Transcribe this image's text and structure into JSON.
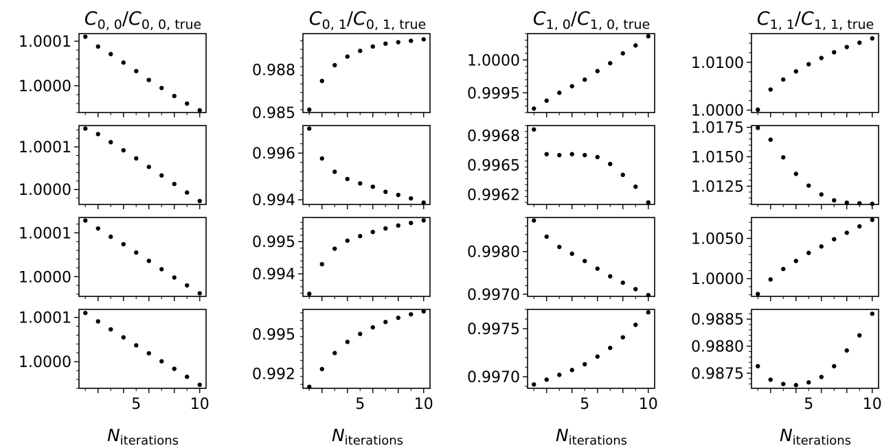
{
  "figure": {
    "column_titles": [
      {
        "base": "C",
        "sub": "0, 0",
        "den": "C",
        "den_sub": "0, 0, true"
      },
      {
        "base": "C",
        "sub": "0, 1",
        "den": "C",
        "den_sub": "0, 1, true"
      },
      {
        "base": "C",
        "sub": "1, 0",
        "den": "C",
        "den_sub": "1, 0, true"
      },
      {
        "base": "C",
        "sub": "1, 1",
        "den": "C",
        "den_sub": "1, 1, true"
      }
    ],
    "xlabel": {
      "base": "N",
      "sub": "iterations"
    },
    "x_ticks": [
      "5",
      "10"
    ],
    "point_color": "#000000"
  },
  "chart_data": [
    {
      "type": "scatter",
      "row": 0,
      "col": 0,
      "x": [
        1,
        2,
        3,
        4,
        5,
        6,
        7,
        8,
        9,
        10
      ],
      "y": [
        1.00011,
        1.000088,
        1.000071,
        1.000052,
        1.000033,
        1.000013,
        0.999995,
        0.999977,
        0.99996,
        0.999945
      ],
      "ylim": [
        0.99994,
        1.000117
      ],
      "yticks": [
        1.0,
        1.0001
      ],
      "ytick_labels": [
        "1.0000",
        "1.0001"
      ]
    },
    {
      "type": "scatter",
      "row": 0,
      "col": 1,
      "x": [
        1,
        2,
        3,
        4,
        5,
        6,
        7,
        8,
        9,
        10
      ],
      "y": [
        0.9852,
        0.9872,
        0.9883,
        0.9889,
        0.9893,
        0.9896,
        0.9898,
        0.9899,
        0.99,
        0.9901
      ],
      "ylim": [
        0.985,
        0.9905
      ],
      "yticks": [
        0.985,
        0.988
      ],
      "ytick_labels": [
        "0.985",
        "0.988"
      ]
    },
    {
      "type": "scatter",
      "row": 0,
      "col": 2,
      "x": [
        1,
        2,
        3,
        4,
        5,
        6,
        7,
        8,
        9,
        10
      ],
      "y": [
        0.99926,
        0.99938,
        0.9995,
        0.9996,
        0.9997,
        0.99983,
        0.99995,
        1.0001,
        1.00022,
        1.00036
      ],
      "ylim": [
        0.9992,
        1.0004
      ],
      "yticks": [
        0.9995,
        1.0
      ],
      "ytick_labels": [
        "0.9995",
        "1.0000"
      ]
    },
    {
      "type": "scatter",
      "row": 0,
      "col": 3,
      "x": [
        1,
        2,
        3,
        4,
        5,
        6,
        7,
        8,
        9,
        10
      ],
      "y": [
        1.0001,
        1.0043,
        1.0064,
        1.0081,
        1.0096,
        1.0109,
        1.0121,
        1.0132,
        1.0141,
        1.015
      ],
      "ylim": [
        0.9995,
        1.016
      ],
      "yticks": [
        1.0,
        1.01
      ],
      "ytick_labels": [
        "1.0000",
        "1.0100"
      ]
    },
    {
      "type": "scatter",
      "row": 1,
      "col": 0,
      "x": [
        1,
        2,
        3,
        4,
        5,
        6,
        7,
        8,
        9,
        10
      ],
      "y": [
        1.000143,
        1.00013,
        1.000111,
        1.000092,
        1.000073,
        1.000053,
        1.000033,
        1.000013,
        0.999993,
        0.999973
      ],
      "ylim": [
        0.999965,
        1.00015
      ],
      "yticks": [
        1.0,
        1.0001
      ],
      "ytick_labels": [
        "1.0000",
        "1.0001"
      ]
    },
    {
      "type": "scatter",
      "row": 1,
      "col": 1,
      "x": [
        1,
        2,
        3,
        4,
        5,
        6,
        7,
        8,
        9,
        10
      ],
      "y": [
        0.99705,
        0.99577,
        0.9952,
        0.99489,
        0.9947,
        0.99456,
        0.99434,
        0.99421,
        0.99406,
        0.99388
      ],
      "ylim": [
        0.9938,
        0.99718
      ],
      "yticks": [
        0.994,
        0.996
      ],
      "ytick_labels": [
        "0.994",
        "0.996"
      ]
    },
    {
      "type": "scatter",
      "row": 1,
      "col": 2,
      "x": [
        1,
        2,
        3,
        4,
        5,
        6,
        7,
        8,
        9,
        10
      ],
      "y": [
        0.99686,
        0.99661,
        0.9966,
        0.99661,
        0.9966,
        0.99658,
        0.99651,
        0.9964,
        0.99628,
        0.99612
      ],
      "ylim": [
        0.9961,
        0.9969
      ],
      "yticks": [
        0.9962,
        0.9965,
        0.9968
      ],
      "ytick_labels": [
        "0.9962",
        "0.9965",
        "0.9968"
      ]
    },
    {
      "type": "scatter",
      "row": 1,
      "col": 3,
      "x": [
        1,
        2,
        3,
        4,
        5,
        6,
        7,
        8,
        9,
        10
      ],
      "y": [
        1.01745,
        1.01645,
        1.01495,
        1.01355,
        1.01255,
        1.0118,
        1.0113,
        1.0111,
        1.01105,
        1.011
      ],
      "ylim": [
        1.01095,
        1.01765
      ],
      "yticks": [
        1.0125,
        1.015,
        1.0175
      ],
      "ytick_labels": [
        "1.0125",
        "1.0150",
        "1.0175"
      ]
    },
    {
      "type": "scatter",
      "row": 2,
      "col": 0,
      "x": [
        1,
        2,
        3,
        4,
        5,
        6,
        7,
        8,
        9,
        10
      ],
      "y": [
        1.000128,
        1.00011,
        1.000091,
        1.000074,
        1.000055,
        1.000036,
        1.000017,
        0.999998,
        0.99998,
        0.999962
      ],
      "ylim": [
        0.999955,
        1.000135
      ],
      "yticks": [
        1.0,
        1.0001
      ],
      "ytick_labels": [
        "1.0000",
        "1.0001"
      ]
    },
    {
      "type": "scatter",
      "row": 2,
      "col": 1,
      "x": [
        1,
        2,
        3,
        4,
        5,
        6,
        7,
        8,
        9,
        10
      ],
      "y": [
        0.99338,
        0.9943,
        0.99478,
        0.99503,
        0.99517,
        0.9953,
        0.99541,
        0.9955,
        0.99558,
        0.99566
      ],
      "ylim": [
        0.9933,
        0.99575
      ],
      "yticks": [
        0.994,
        0.995
      ],
      "ytick_labels": [
        "0.994",
        "0.995"
      ]
    },
    {
      "type": "scatter",
      "row": 2,
      "col": 2,
      "x": [
        1,
        2,
        3,
        4,
        5,
        6,
        7,
        8,
        9,
        10
      ],
      "y": [
        0.99873,
        0.99835,
        0.99811,
        0.99795,
        0.99778,
        0.9976,
        0.99742,
        0.99727,
        0.99712,
        0.99698
      ],
      "ylim": [
        0.99695,
        0.9988
      ],
      "yticks": [
        0.997,
        0.998
      ],
      "ytick_labels": [
        "0.9970",
        "0.9980"
      ]
    },
    {
      "type": "scatter",
      "row": 2,
      "col": 3,
      "x": [
        1,
        2,
        3,
        4,
        5,
        6,
        7,
        8,
        9,
        10
      ],
      "y": [
        0.9981,
        0.9999,
        1.0012,
        1.0022,
        1.0032,
        1.004,
        1.0049,
        1.0057,
        1.0065,
        1.0073
      ],
      "ylim": [
        0.9978,
        1.0076
      ],
      "yticks": [
        1.0,
        1.005
      ],
      "ytick_labels": [
        "1.0000",
        "1.0050"
      ]
    },
    {
      "type": "scatter",
      "row": 3,
      "col": 0,
      "x": [
        1,
        2,
        3,
        4,
        5,
        6,
        7,
        8,
        9,
        10
      ],
      "y": [
        1.00011,
        1.000091,
        1.000073,
        1.000055,
        1.000037,
        1.000019,
        1.000001,
        0.999984,
        0.999966,
        0.999948
      ],
      "ylim": [
        0.99994,
        1.000118
      ],
      "yticks": [
        1.0,
        1.0001
      ],
      "ytick_labels": [
        "1.0000",
        "1.0001"
      ]
    },
    {
      "type": "scatter",
      "row": 3,
      "col": 1,
      "x": [
        1,
        2,
        3,
        4,
        5,
        6,
        7,
        8,
        9,
        10
      ],
      "y": [
        0.99101,
        0.99235,
        0.99356,
        0.9944,
        0.995,
        0.9955,
        0.9959,
        0.99622,
        0.99648,
        0.9967
      ],
      "ylim": [
        0.9909,
        0.99685
      ],
      "yticks": [
        0.992,
        0.995
      ],
      "ytick_labels": [
        "0.992",
        "0.995"
      ]
    },
    {
      "type": "scatter",
      "row": 3,
      "col": 2,
      "x": [
        1,
        2,
        3,
        4,
        5,
        6,
        7,
        8,
        9,
        10
      ],
      "y": [
        0.99692,
        0.99697,
        0.99702,
        0.99707,
        0.99713,
        0.99721,
        0.9973,
        0.99741,
        0.99754,
        0.99767
      ],
      "ylim": [
        0.99688,
        0.9977
      ],
      "yticks": [
        0.997,
        0.9975
      ],
      "ytick_labels": [
        "0.9970",
        "0.9975"
      ]
    },
    {
      "type": "scatter",
      "row": 3,
      "col": 3,
      "x": [
        1,
        2,
        3,
        4,
        5,
        6,
        7,
        8,
        9,
        10
      ],
      "y": [
        0.98763,
        0.98738,
        0.9873,
        0.98728,
        0.98733,
        0.98743,
        0.98763,
        0.98792,
        0.9882,
        0.9886
      ],
      "ylim": [
        0.98722,
        0.98868
      ],
      "yticks": [
        0.9875,
        0.988,
        0.9885
      ],
      "ytick_labels": [
        "0.9875",
        "0.9880",
        "0.9885"
      ]
    }
  ]
}
